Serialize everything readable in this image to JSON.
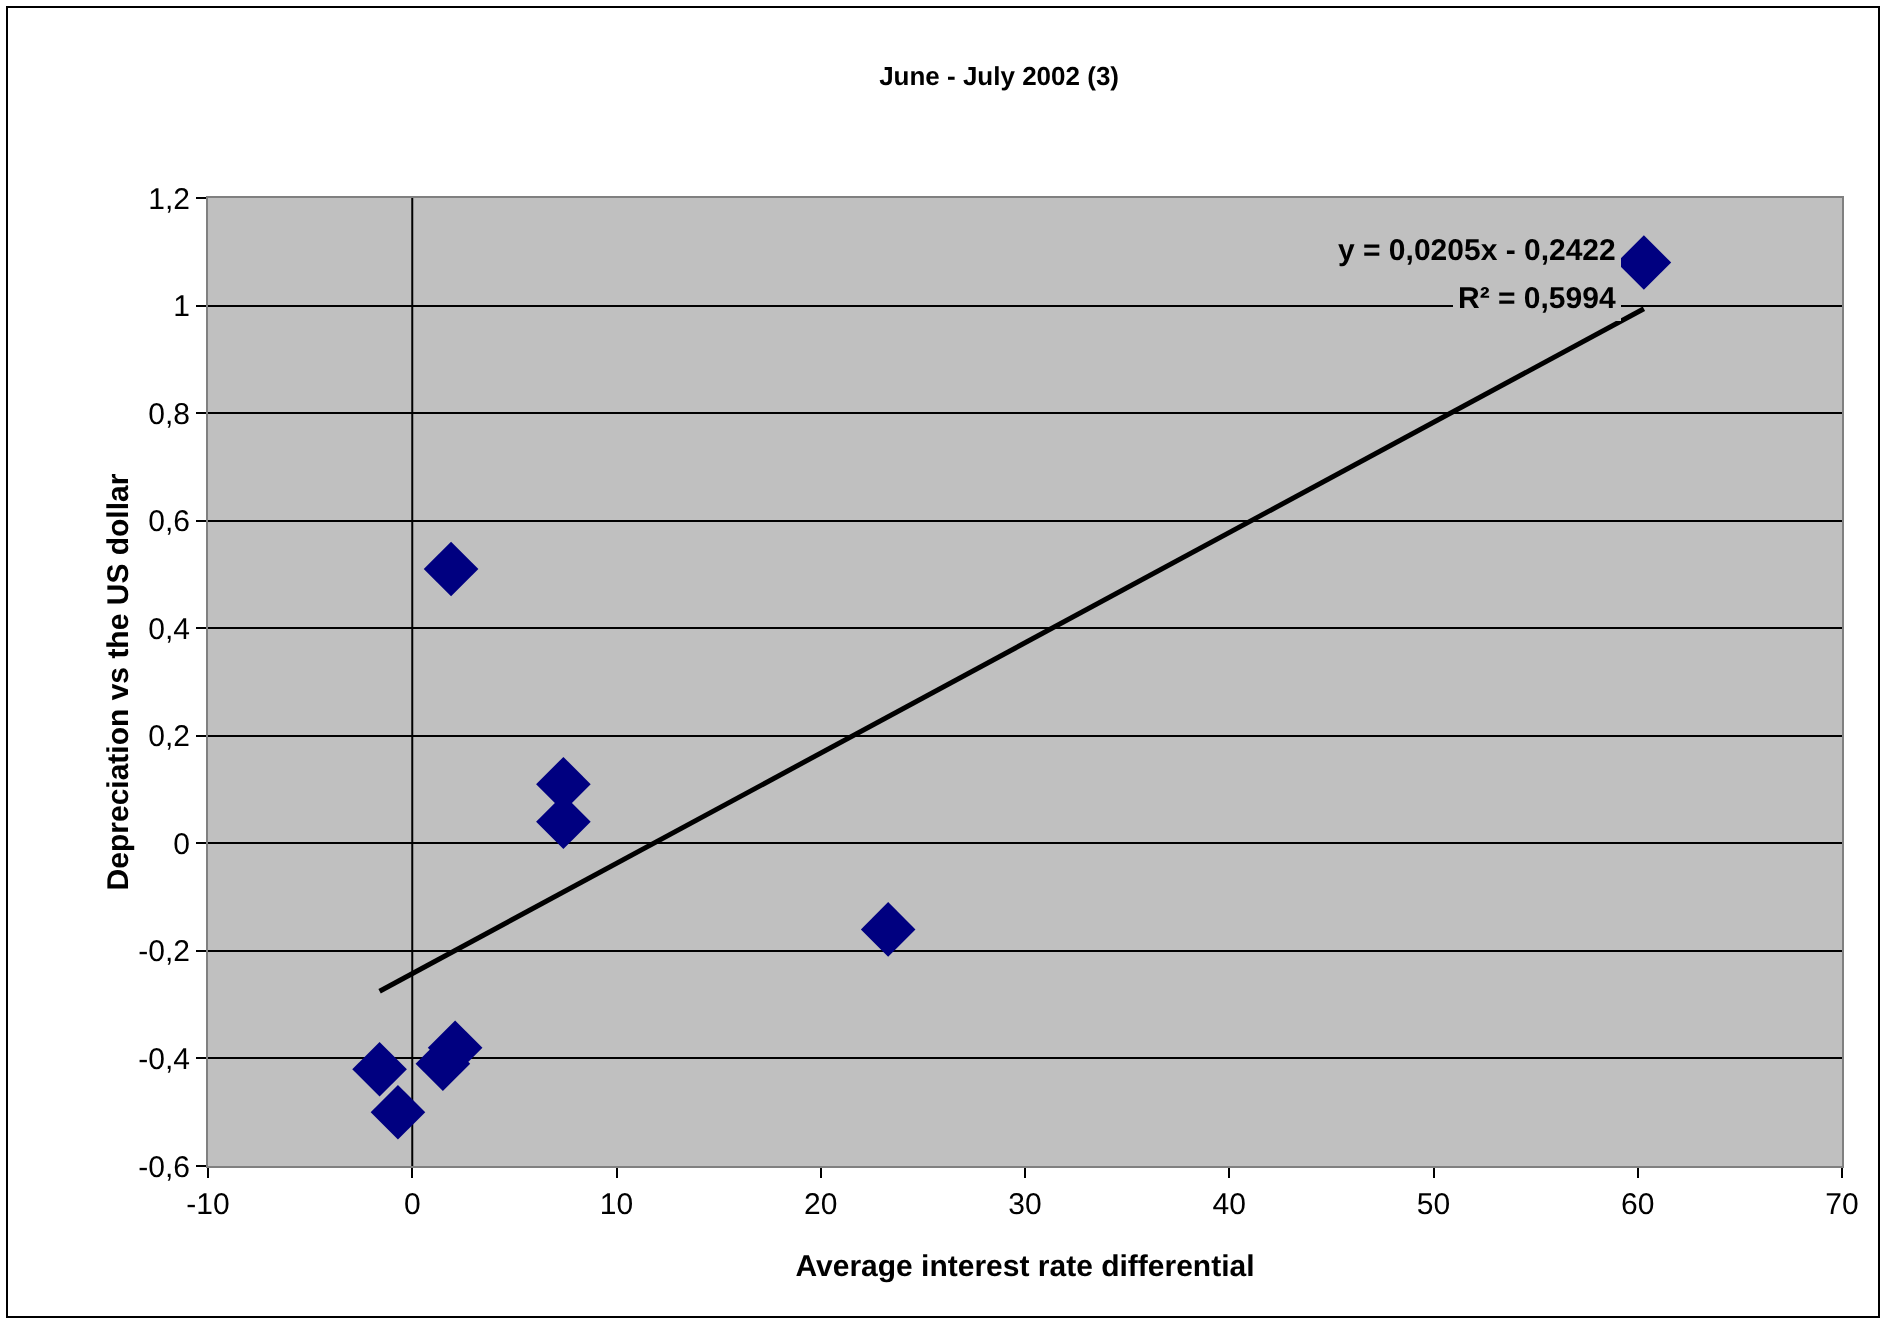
{
  "chart_data": {
    "type": "scatter",
    "title": "June - July 2002 (3)",
    "xlabel": "Average interest rate differential",
    "ylabel": "Depreciation vs the US dollar",
    "x": [
      60.3,
      1.9,
      7.4,
      7.4,
      23.3,
      -1.6,
      -0.7,
      1.5,
      2.1
    ],
    "series": [
      {
        "color": "#000080",
        "marker": "diamond",
        "values": [
          1.08,
          0.51,
          0.11,
          0.04,
          -0.16,
          -0.42,
          -0.5,
          -0.41,
          -0.38
        ]
      },
      {
        "type": "line",
        "color": "#000000",
        "line_style": "solid",
        "marker": "none",
        "x": [
          -1.6,
          60.3
        ],
        "values": [
          -0.275,
          0.994
        ]
      }
    ],
    "xlim": [
      -10,
      70
    ],
    "xticks": [
      -10,
      0,
      10,
      20,
      30,
      40,
      50,
      60,
      70
    ],
    "ylim": [
      -0.6,
      1.2
    ],
    "yticks": [
      {
        "value": -0.6,
        "label": "-0,6"
      },
      {
        "value": -0.4,
        "label": "-0,4"
      },
      {
        "value": -0.2,
        "label": "-0,2"
      },
      0,
      {
        "value": 0.2,
        "label": "0,2"
      },
      {
        "value": 0.4,
        "label": "0,4"
      },
      {
        "value": 0.6,
        "label": "0,6"
      },
      {
        "value": 0.8,
        "label": "0,8"
      },
      1,
      {
        "value": 1.2,
        "label": "1,2"
      }
    ],
    "grid": "y",
    "ref_lines": [
      {
        "axis": "x",
        "value": 0,
        "color": "#000000"
      }
    ],
    "annotations": [
      "y = 0,0205x - 0,2422",
      "R² = 0,5994"
    ]
  }
}
